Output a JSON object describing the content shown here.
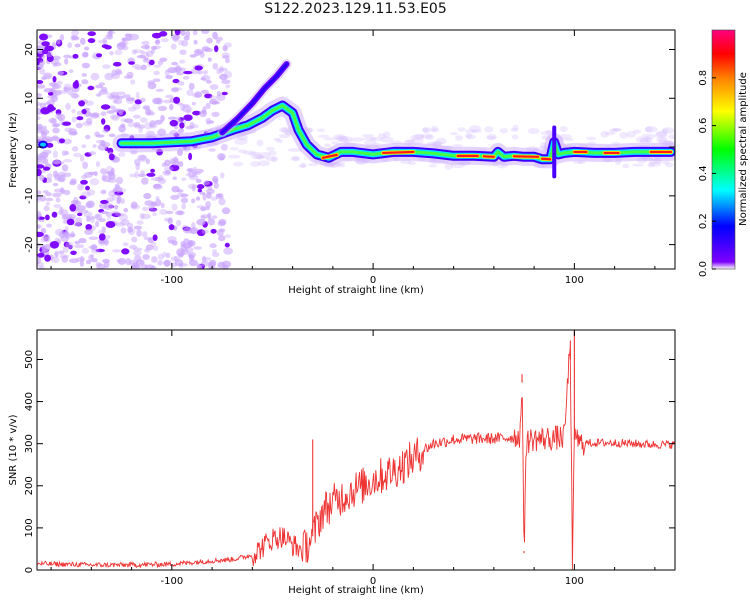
{
  "title": "S122.2023.129.11.53.E05",
  "chart_data": [
    {
      "type": "heatmap",
      "xlabel": "Height of straight line (km)",
      "ylabel": "Frequency (Hz)",
      "xlim": [
        -167,
        150
      ],
      "ylim": [
        -25,
        24
      ],
      "x_ticks": [
        -100,
        0,
        100
      ],
      "y_ticks": [
        -20,
        -10,
        0,
        10,
        20
      ],
      "colorbar": {
        "label": "Normalized spectral amplitude",
        "range": [
          0,
          1
        ],
        "ticks": [
          0.0,
          0.2,
          0.4,
          0.6,
          0.8
        ],
        "colors": [
          "#ffffff",
          "#7d00ff",
          "#0000ff",
          "#00ffff",
          "#00ff00",
          "#ffff00",
          "#ff8000",
          "#ff0000",
          "#ff00a0"
        ]
      },
      "ridge": {
        "x": [
          -125,
          -110,
          -100,
          -90,
          -80,
          -70,
          -62,
          -55,
          -50,
          -45,
          -40,
          -37,
          -33,
          -28,
          -22,
          -16,
          -10,
          0,
          10,
          20,
          30,
          40,
          50,
          60,
          62,
          65,
          70,
          75,
          80,
          84,
          88,
          90,
          92,
          95,
          100,
          110,
          120,
          130,
          140,
          148
        ],
        "y": [
          0.8,
          0.8,
          1.0,
          1.2,
          2.0,
          3.5,
          4.5,
          6.0,
          7.5,
          8.5,
          7.0,
          3.5,
          0.5,
          -1.5,
          -2.2,
          -1.0,
          -1.0,
          -1.5,
          -1.0,
          -1.0,
          -1.3,
          -1.8,
          -1.8,
          -2.0,
          -1.0,
          -2.0,
          -1.8,
          -2.0,
          -2.0,
          -2.5,
          -2.5,
          1.0,
          -1.5,
          -1.2,
          -1.0,
          -1.2,
          -1.2,
          -1.0,
          -1.0,
          -1.0
        ]
      },
      "branch": {
        "x": [
          -75,
          -67,
          -60,
          -54,
          -48,
          -43
        ],
        "y": [
          3,
          6,
          9,
          12,
          14.5,
          17
        ]
      }
    },
    {
      "type": "line",
      "xlabel": "Height of straight line (km)",
      "ylabel": "SNR (10 * v/v)",
      "xlim": [
        -167,
        150
      ],
      "ylim": [
        0,
        570
      ],
      "x_ticks": [
        -100,
        0,
        100
      ],
      "y_ticks": [
        0,
        100,
        200,
        300,
        400,
        500
      ],
      "color": "#ee3333",
      "series": [
        {
          "x": [
            -167,
            -140,
            -120,
            -100,
            -90,
            -80,
            -70,
            -60,
            -55,
            -50,
            -45,
            -40,
            -35,
            -30,
            -25,
            -20,
            -15,
            -10,
            -5,
            0,
            5,
            10,
            15,
            20,
            25,
            30,
            35,
            40,
            50,
            60,
            70,
            73,
            74,
            75,
            76,
            78,
            85,
            95,
            98,
            99,
            100,
            101,
            102,
            110,
            120,
            130,
            140,
            150
          ],
          "y": [
            15,
            12,
            12,
            14,
            18,
            22,
            25,
            35,
            55,
            75,
            80,
            60,
            45,
            80,
            140,
            160,
            175,
            190,
            200,
            215,
            225,
            235,
            250,
            265,
            285,
            300,
            305,
            310,
            312,
            312,
            315,
            320,
            445,
            40,
            300,
            310,
            312,
            315,
            545,
            5,
            310,
            330,
            300,
            302,
            302,
            300,
            298,
            298
          ]
        }
      ],
      "spikes": [
        {
          "x": -30,
          "y": 310
        },
        {
          "x": 74,
          "y": 465
        },
        {
          "x": 75,
          "y": 45
        },
        {
          "x": 98,
          "y": 500
        },
        {
          "x": 100,
          "y": 570
        },
        {
          "x": 99,
          "y": 5
        }
      ]
    }
  ]
}
